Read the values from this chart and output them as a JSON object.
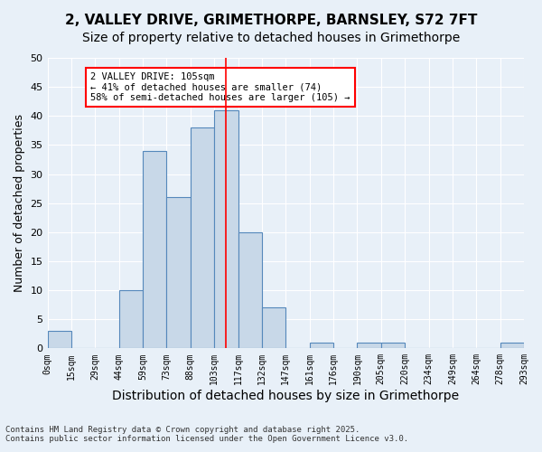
{
  "title1": "2, VALLEY DRIVE, GRIMETHORPE, BARNSLEY, S72 7FT",
  "title2": "Size of property relative to detached houses in Grimethorpe",
  "xlabel": "Distribution of detached houses by size in Grimethorpe",
  "ylabel": "Number of detached properties",
  "bin_labels": [
    "0sqm",
    "15sqm",
    "29sqm",
    "44sqm",
    "59sqm",
    "73sqm",
    "88sqm",
    "103sqm",
    "117sqm",
    "132sqm",
    "147sqm",
    "161sqm",
    "176sqm",
    "190sqm",
    "205sqm",
    "220sqm",
    "234sqm",
    "249sqm",
    "264sqm",
    "278sqm",
    "293sqm"
  ],
  "bar_values": [
    3,
    0,
    0,
    10,
    34,
    26,
    38,
    41,
    20,
    7,
    0,
    1,
    0,
    1,
    1,
    0,
    0,
    0,
    0,
    1
  ],
  "bar_color": "#c8d8e8",
  "bar_edge_color": "#5588bb",
  "vline_x": 7.0,
  "vline_color": "red",
  "annotation_text": "2 VALLEY DRIVE: 105sqm\n← 41% of detached houses are smaller (74)\n58% of semi-detached houses are larger (105) →",
  "annotation_box_color": "white",
  "annotation_box_edge": "red",
  "ylim": [
    0,
    50
  ],
  "yticks": [
    0,
    5,
    10,
    15,
    20,
    25,
    30,
    35,
    40,
    45,
    50
  ],
  "background_color": "#e8f0f8",
  "footer_text": "Contains HM Land Registry data © Crown copyright and database right 2025.\nContains public sector information licensed under the Open Government Licence v3.0.",
  "title1_fontsize": 11,
  "title2_fontsize": 10,
  "xlabel_fontsize": 10,
  "ylabel_fontsize": 9
}
